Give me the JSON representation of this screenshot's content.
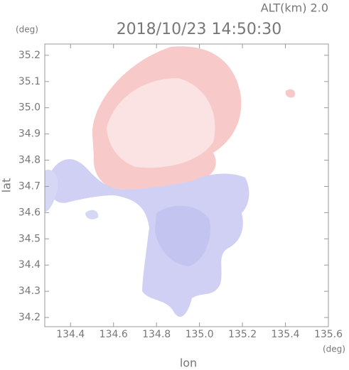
{
  "chart_data": {
    "type": "map",
    "annotation": "ALT(km) 2.0",
    "title": "2018/10/23 14:50:30",
    "y_unit": "(deg)",
    "x_unit": "(deg)",
    "xlabel": "lon",
    "ylabel": "lat",
    "xlim": [
      134.28,
      135.6
    ],
    "ylim": [
      34.165,
      35.243
    ],
    "xticks": [
      134.4,
      134.6,
      134.8,
      {
        "value": 135.0,
        "label": "135.0"
      },
      135.2,
      135.4,
      135.6
    ],
    "yticks": [
      34.2,
      34.3,
      34.4,
      34.5,
      34.6,
      34.7,
      34.8,
      34.9,
      {
        "value": 35.0,
        "label": "35.0"
      },
      35.1,
      35.2
    ]
  }
}
